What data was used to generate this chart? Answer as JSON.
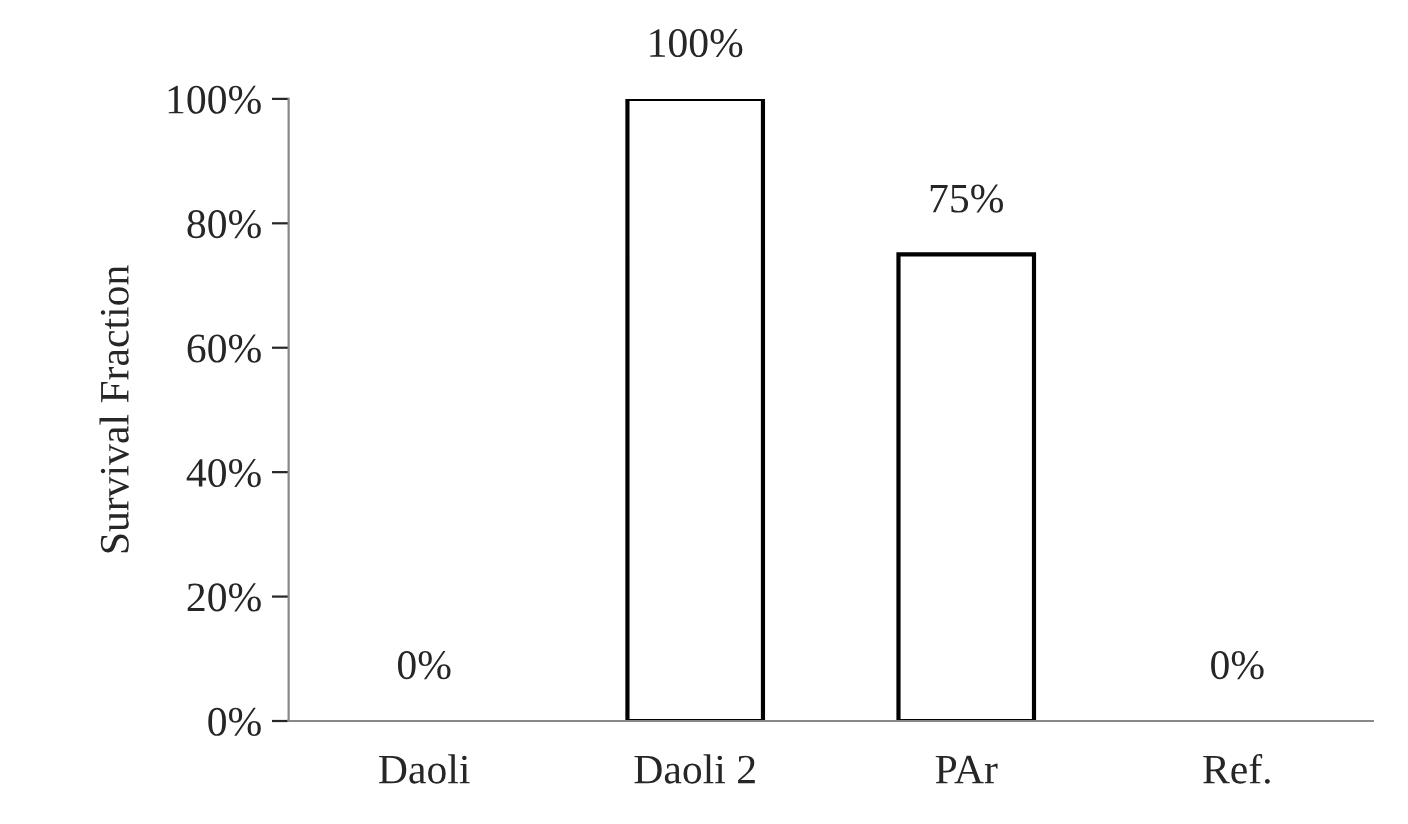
{
  "chart_data": {
    "type": "bar",
    "ylabel": "Survival Fraction",
    "categories": [
      "Daoli",
      "Daoli 2",
      "PAr",
      "Ref."
    ],
    "values": [
      0,
      100,
      75,
      0
    ],
    "value_labels": [
      "0%",
      "100%",
      "75%",
      "0%"
    ],
    "color": "#ffffff",
    "ylim": [
      0,
      100
    ],
    "yticks": [
      {
        "value": 0,
        "label": "0%"
      },
      {
        "value": 20,
        "label": "20%"
      },
      {
        "value": 40,
        "label": "40%"
      },
      {
        "value": 60,
        "label": "60%"
      },
      {
        "value": 80,
        "label": "80%"
      },
      {
        "value": 100,
        "label": "100%"
      }
    ],
    "grid": false
  }
}
